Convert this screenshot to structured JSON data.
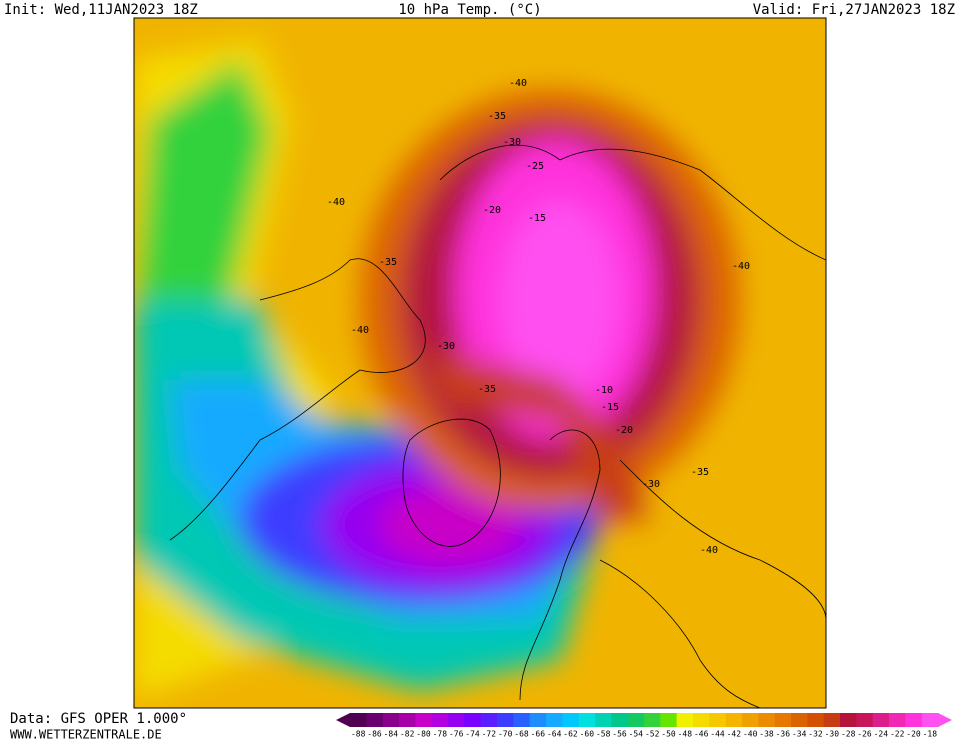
{
  "header": {
    "init": "Init: Wed,11JAN2023 18Z",
    "title": "10 hPa Temp. (°C)",
    "valid": "Valid: Fri,27JAN2023 18Z"
  },
  "footer": {
    "data_source": "Data: GFS OPER 1.000°",
    "website": "WWW.WETTERZENTRALE.DE"
  },
  "map": {
    "contour_labels": [
      -40,
      -35,
      -30,
      -25,
      -20,
      -15,
      -40,
      -35,
      -40,
      -40,
      -10,
      -15,
      -20,
      -35,
      -30,
      -40,
      -30,
      -35
    ]
  },
  "legend": {
    "stops": [
      -88,
      -86,
      -84,
      -82,
      -80,
      -78,
      -76,
      -74,
      -72,
      -70,
      -68,
      -66,
      -64,
      -62,
      -60,
      -58,
      -56,
      -54,
      -52,
      -50,
      -48,
      -46,
      -44,
      -42,
      -40,
      -38,
      -36,
      -34,
      -32,
      -30,
      -28,
      -26,
      -24,
      -22,
      -20,
      -18
    ],
    "colors": [
      "#500050",
      "#6a0070",
      "#8a008a",
      "#a800a8",
      "#c800c8",
      "#b400e0",
      "#9600f0",
      "#7a00ff",
      "#5a1eff",
      "#3c3cff",
      "#2860ff",
      "#1e8cff",
      "#14aaff",
      "#00c8ff",
      "#00e0e0",
      "#00d2b4",
      "#00c88c",
      "#14c864",
      "#32d23c",
      "#64e600",
      "#f0f000",
      "#f5dc00",
      "#f5c800",
      "#f5b400",
      "#f0a000",
      "#eb8c00",
      "#e67800",
      "#dc6400",
      "#d25000",
      "#c83c14",
      "#b4143c",
      "#c8145a",
      "#dc1e8c",
      "#f028b4",
      "#ff32dc",
      "#ff50f0"
    ]
  }
}
